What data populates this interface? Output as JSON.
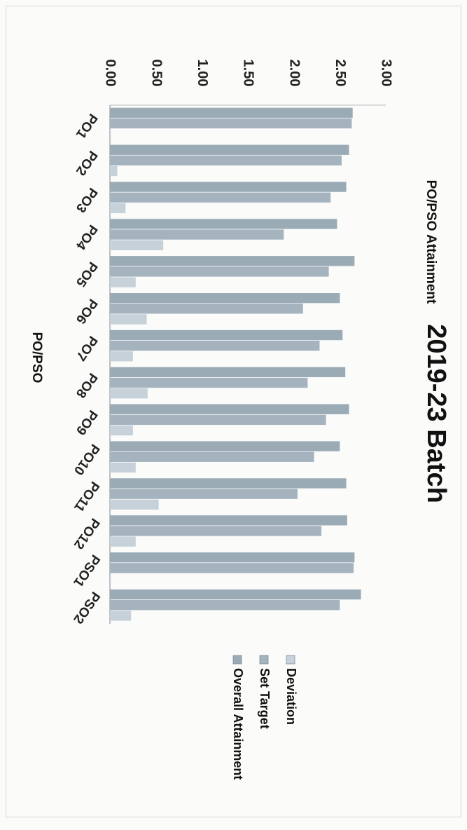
{
  "chart_data": {
    "type": "bar",
    "orientation": "horizontal",
    "title": "2019-23 Batch",
    "xlabel": "PO/PSO",
    "ylabel": "PO/PSO Attainment",
    "ylim": [
      0,
      3
    ],
    "ticks": [
      "0.00",
      "0.50",
      "1.00",
      "1.50",
      "2.00",
      "2.50",
      "3.00"
    ],
    "grid": false,
    "legend_position": "right",
    "categories": [
      "PO1",
      "PO2",
      "PO3",
      "PO4",
      "PO5",
      "PO6",
      "PO7",
      "PO8",
      "PO9",
      "PO10",
      "PO11",
      "PO12",
      "PSO1",
      "PSO2"
    ],
    "series": [
      {
        "name": "Overall Attainment",
        "color": "#9aabb6",
        "values": [
          2.64,
          2.6,
          2.57,
          2.47,
          2.66,
          2.5,
          2.53,
          2.56,
          2.6,
          2.5,
          2.57,
          2.58,
          2.66,
          2.73
        ]
      },
      {
        "name": "Set Target",
        "color": "#a4b3be",
        "values": [
          2.63,
          2.52,
          2.4,
          1.89,
          2.38,
          2.1,
          2.28,
          2.15,
          2.35,
          2.22,
          2.04,
          2.3,
          2.65,
          2.5
        ]
      },
      {
        "name": "Deviation",
        "color": "#c6d1da",
        "values": [
          0.01,
          0.08,
          0.17,
          0.58,
          0.28,
          0.4,
          0.25,
          0.41,
          0.25,
          0.28,
          0.53,
          0.28,
          0.01,
          0.23
        ]
      }
    ]
  }
}
